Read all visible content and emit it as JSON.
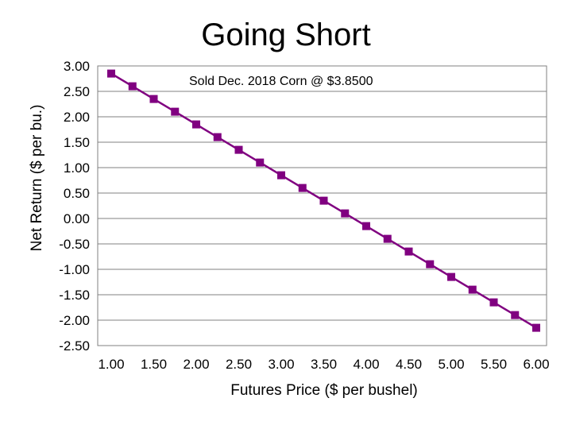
{
  "chart_data": {
    "type": "line",
    "title": "Going Short",
    "annotation": "Sold Dec. 2018 Corn @ $3.8500",
    "xlabel": "Futures Price ($ per bushel)",
    "ylabel": "Net Return ($ per bu.)",
    "xlim": [
      1.0,
      6.0
    ],
    "ylim": [
      -2.5,
      3.0
    ],
    "x_ticks": [
      "1.00",
      "1.50",
      "2.00",
      "2.50",
      "3.00",
      "3.50",
      "4.00",
      "4.50",
      "5.00",
      "5.50",
      "6.00"
    ],
    "y_ticks": [
      "3.00",
      "2.50",
      "2.00",
      "1.50",
      "1.00",
      "0.50",
      "0.00",
      "-0.50",
      "-1.00",
      "-1.50",
      "-2.00",
      "-2.50"
    ],
    "grid": true,
    "legend": "none",
    "series": [
      {
        "color": "#800080",
        "marker": "square",
        "points": [
          [
            1.0,
            2.85
          ],
          [
            1.25,
            2.6
          ],
          [
            1.5,
            2.35
          ],
          [
            1.75,
            2.1
          ],
          [
            2.0,
            1.85
          ],
          [
            2.25,
            1.6
          ],
          [
            2.5,
            1.35
          ],
          [
            2.75,
            1.1
          ],
          [
            3.0,
            0.85
          ],
          [
            3.25,
            0.6
          ],
          [
            3.5,
            0.35
          ],
          [
            3.75,
            0.1
          ],
          [
            4.0,
            -0.15
          ],
          [
            4.25,
            -0.4
          ],
          [
            4.5,
            -0.65
          ],
          [
            4.75,
            -0.9
          ],
          [
            5.0,
            -1.15
          ],
          [
            5.25,
            -1.4
          ],
          [
            5.5,
            -1.65
          ],
          [
            5.75,
            -1.9
          ],
          [
            6.0,
            -2.15
          ]
        ]
      }
    ]
  }
}
